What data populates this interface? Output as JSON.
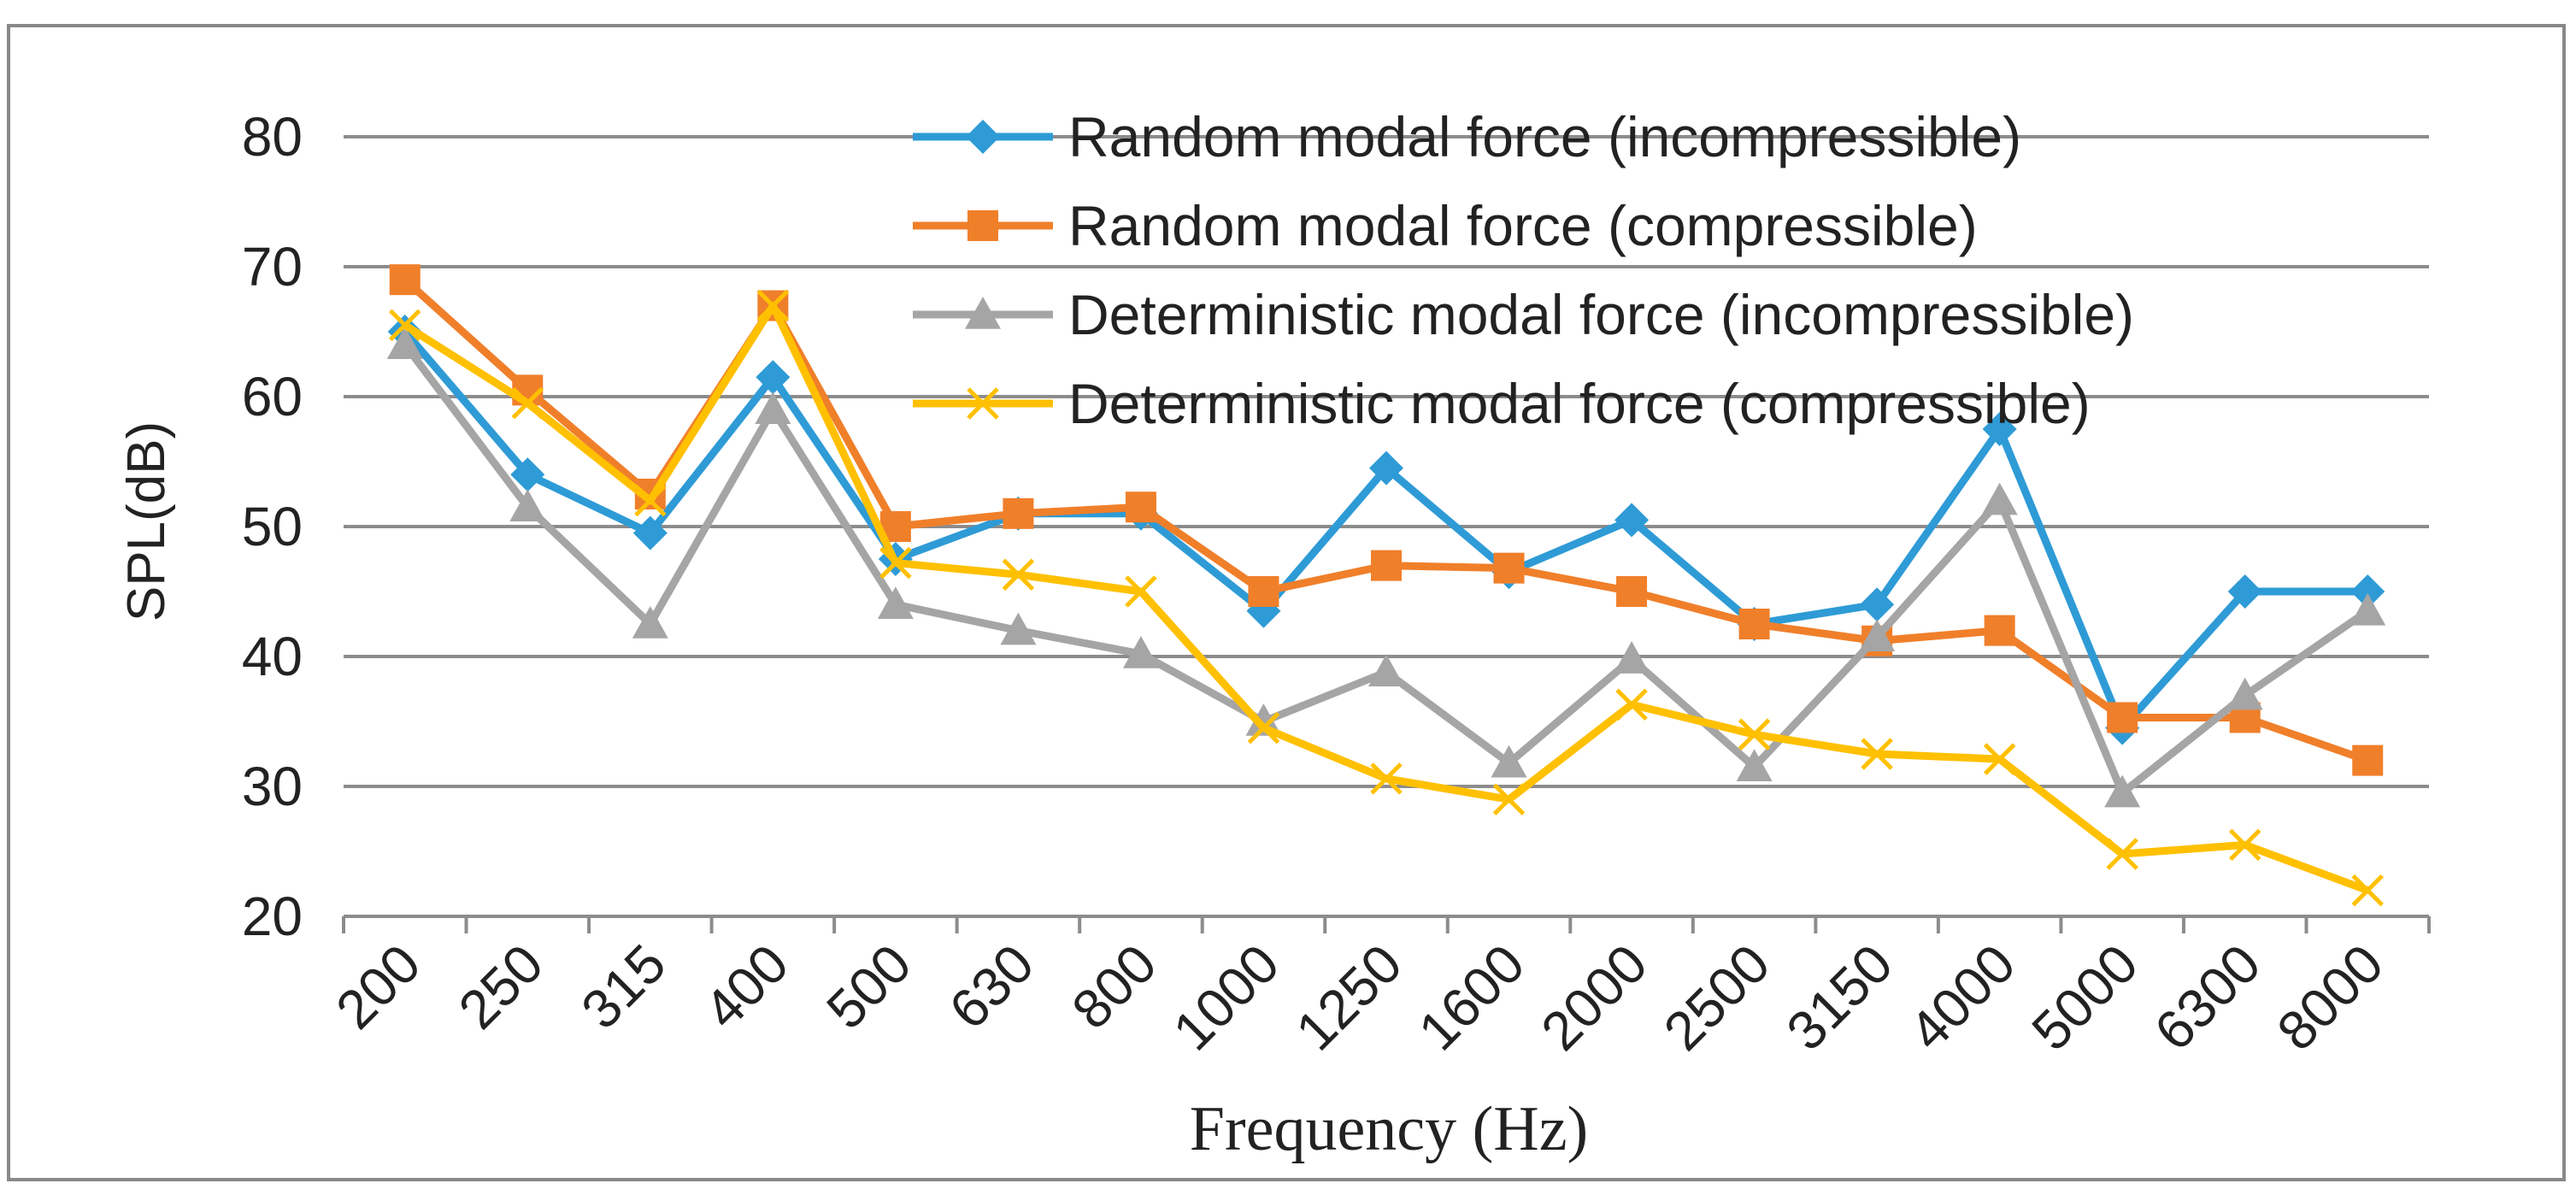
{
  "chart_data": {
    "type": "line",
    "title": "",
    "xlabel": "Frequency (Hz)",
    "ylabel": "SPL(dB)",
    "ylim": [
      20,
      80
    ],
    "yticks": [
      20,
      30,
      40,
      50,
      60,
      70,
      80
    ],
    "grid": true,
    "legend_position": "top-right",
    "categories": [
      "200",
      "250",
      "315",
      "400",
      "500",
      "630",
      "800",
      "1000",
      "1250",
      "1600",
      "2000",
      "2500",
      "3150",
      "4000",
      "5000",
      "6300",
      "8000"
    ],
    "series": [
      {
        "name": "Random modal force (incompressible)",
        "color": "#2e9bd6",
        "marker": "diamond",
        "values": [
          65,
          54,
          49.5,
          61.5,
          47.5,
          51,
          51,
          43.5,
          54.5,
          46.5,
          50.5,
          42.5,
          44,
          57.5,
          34.5,
          45,
          45
        ]
      },
      {
        "name": "Random modal force (compressible)",
        "color": "#f07f2a",
        "marker": "square",
        "values": [
          69,
          60.5,
          52.5,
          67,
          50,
          51,
          51.5,
          45,
          47,
          46.8,
          45,
          42.5,
          41.2,
          42,
          35.3,
          35.3,
          32
        ]
      },
      {
        "name": "Deterministic modal force (incompressible)",
        "color": "#a5a5a5",
        "marker": "triangle",
        "values": [
          64,
          51.5,
          42.5,
          59,
          44,
          42,
          40.2,
          35,
          38.8,
          31.8,
          39.8,
          31.5,
          41.5,
          52,
          29.5,
          37,
          43.5
        ]
      },
      {
        "name": "Deterministic modal force (compressible)",
        "color": "#ffc000",
        "marker": "x",
        "values": [
          65.5,
          59.5,
          52,
          67,
          47.2,
          46.3,
          45,
          34.5,
          30.6,
          29,
          36.3,
          34,
          32.5,
          32.1,
          24.8,
          25.5,
          22
        ]
      }
    ]
  }
}
